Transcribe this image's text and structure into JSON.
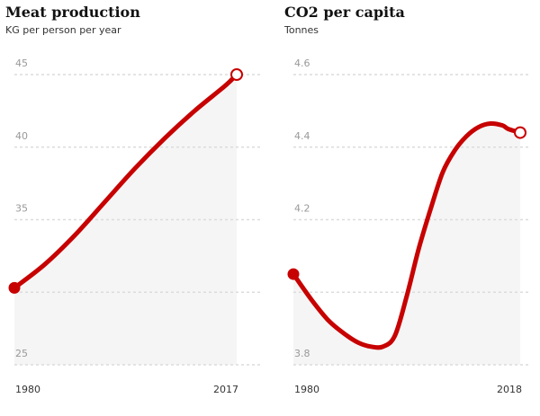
{
  "colors": {
    "line": "#c70000",
    "area": "#f5f5f5",
    "grid": "#dcdcdc",
    "tick": "#999999",
    "axis_label": "#333333"
  },
  "chart_data": [
    {
      "type": "line",
      "title": "Meat production",
      "subtitle": "KG per person per year",
      "xlabel": "",
      "ylabel": "",
      "x_tick_labels": [
        "1980",
        "2017"
      ],
      "xlim": [
        1980,
        2017
      ],
      "ylim": [
        25,
        45
      ],
      "y_ticks": [
        25,
        30,
        35,
        40,
        45
      ],
      "y_tick_labels": [
        "25",
        "",
        "35",
        "40",
        "45"
      ],
      "grid": true,
      "area_fill": true,
      "series": [
        {
          "x": [
            1980,
            1985,
            1990,
            1995,
            2000,
            2005,
            2010,
            2015,
            2017
          ],
          "y": [
            30.3,
            31.9,
            33.9,
            36.2,
            38.5,
            40.6,
            42.5,
            44.2,
            45.0
          ],
          "start_marker": "filled",
          "end_marker": "open"
        }
      ]
    },
    {
      "type": "line",
      "title": "CO2 per capita",
      "subtitle": "Tonnes",
      "xlabel": "",
      "ylabel": "",
      "x_tick_labels": [
        "1980",
        "2018"
      ],
      "xlim": [
        1980,
        2018
      ],
      "ylim": [
        3.8,
        4.6
      ],
      "y_ticks": [
        3.8,
        4.0,
        4.2,
        4.4,
        4.6
      ],
      "y_tick_labels": [
        "3.8",
        "",
        "4.2",
        "4.4",
        "4.6"
      ],
      "grid": true,
      "area_fill": true,
      "series": [
        {
          "x": [
            1980,
            1983,
            1986,
            1989,
            1991,
            1993,
            1995,
            1997,
            1999,
            2001,
            2003,
            2005,
            2007,
            2009,
            2011,
            2013,
            2015,
            2016,
            2018
          ],
          "y": [
            4.05,
            3.98,
            3.92,
            3.88,
            3.86,
            3.85,
            3.85,
            3.88,
            3.99,
            4.12,
            4.23,
            4.33,
            4.39,
            4.43,
            4.455,
            4.465,
            4.46,
            4.45,
            4.44
          ],
          "start_marker": "filled",
          "end_marker": "open"
        }
      ]
    }
  ]
}
